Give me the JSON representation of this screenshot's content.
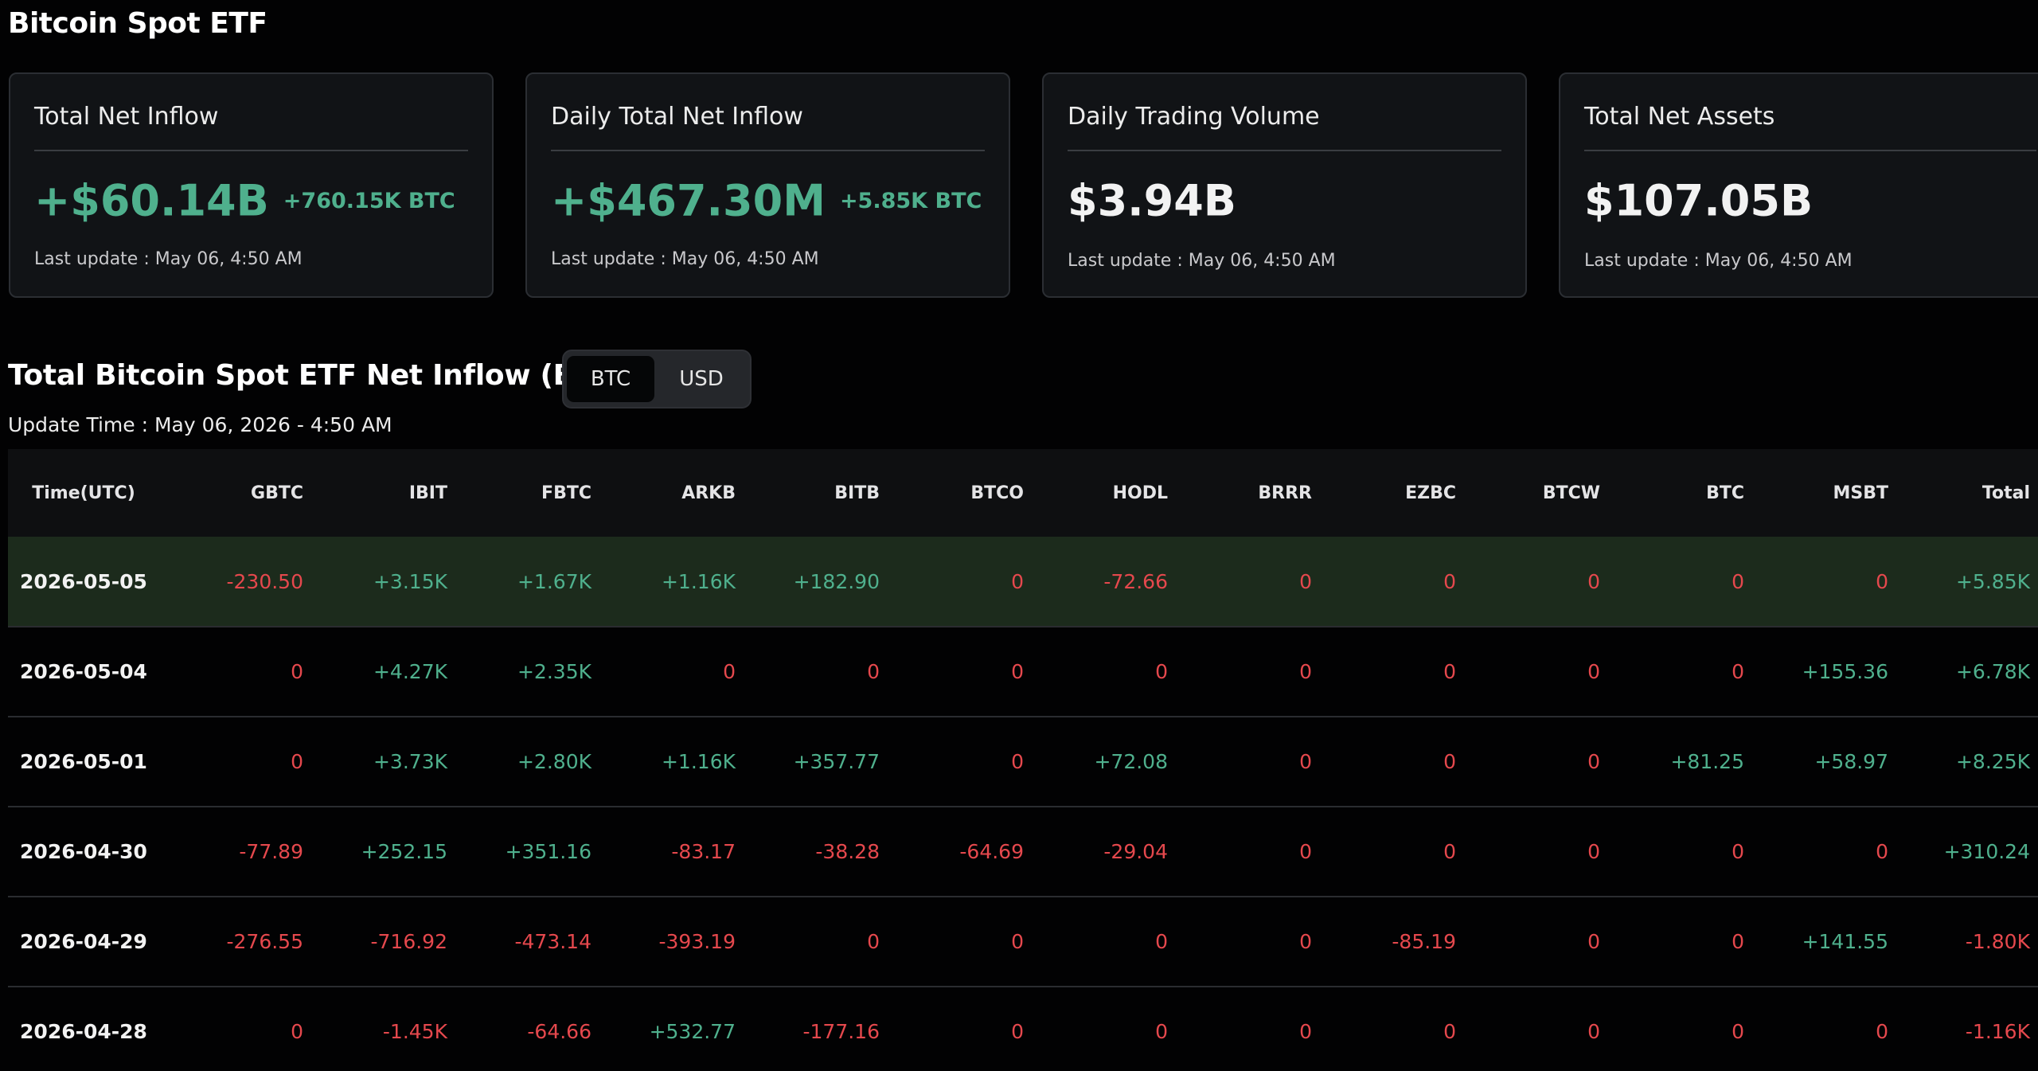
{
  "page": {
    "title": "Bitcoin Spot ETF"
  },
  "cards": [
    {
      "title": "Total Net Inflow",
      "value": "+$60.14B",
      "sub": "+760.15K BTC",
      "update": "Last update : May 06, 4:50 AM",
      "value_color": "#4fb08d"
    },
    {
      "title": "Daily Total Net Inflow",
      "value": "+$467.30M",
      "sub": "+5.85K BTC",
      "update": "Last update : May 06, 4:50 AM",
      "value_color": "#4fb08d"
    },
    {
      "title": "Daily Trading Volume",
      "value": "$3.94B",
      "sub": "",
      "update": "Last update : May 06, 4:50 AM",
      "value_color": "#f2f2f2"
    },
    {
      "title": "Total Net Assets",
      "value": "$107.05B",
      "sub": "",
      "update": "Last update : May 06, 4:50 AM",
      "value_color": "#f2f2f2"
    }
  ],
  "section": {
    "title": "Total Bitcoin Spot ETF Net Inflow (BTC)",
    "toggle": {
      "options": [
        "BTC",
        "USD"
      ],
      "selected": "BTC"
    },
    "update_time": "Update Time : May 06, 2026 - 4:50 AM"
  },
  "colors": {
    "positive": "#4fb08d",
    "negative": "#e5484d",
    "highlight_row": "#1c2b1c",
    "background": "#020203"
  },
  "table": {
    "columns": [
      "Time(UTC)",
      "GBTC",
      "IBIT",
      "FBTC",
      "ARKB",
      "BITB",
      "BTCO",
      "HODL",
      "BRRR",
      "EZBC",
      "BTCW",
      "BTC",
      "MSBT",
      "Total"
    ],
    "rows": [
      {
        "highlight": true,
        "cells": [
          "2026-05-05",
          "-230.50",
          "+3.15K",
          "+1.67K",
          "+1.16K",
          "+182.90",
          "0",
          "-72.66",
          "0",
          "0",
          "0",
          "0",
          "0",
          "+5.85K"
        ]
      },
      {
        "highlight": false,
        "cells": [
          "2026-05-04",
          "0",
          "+4.27K",
          "+2.35K",
          "0",
          "0",
          "0",
          "0",
          "0",
          "0",
          "0",
          "0",
          "+155.36",
          "+6.78K"
        ]
      },
      {
        "highlight": false,
        "cells": [
          "2026-05-01",
          "0",
          "+3.73K",
          "+2.80K",
          "+1.16K",
          "+357.77",
          "0",
          "+72.08",
          "0",
          "0",
          "0",
          "+81.25",
          "+58.97",
          "+8.25K"
        ]
      },
      {
        "highlight": false,
        "cells": [
          "2026-04-30",
          "-77.89",
          "+252.15",
          "+351.16",
          "-83.17",
          "-38.28",
          "-64.69",
          "-29.04",
          "0",
          "0",
          "0",
          "0",
          "0",
          "+310.24"
        ]
      },
      {
        "highlight": false,
        "cells": [
          "2026-04-29",
          "-276.55",
          "-716.92",
          "-473.14",
          "-393.19",
          "0",
          "0",
          "0",
          "0",
          "-85.19",
          "0",
          "0",
          "+141.55",
          "-1.80K"
        ]
      },
      {
        "highlight": false,
        "cells": [
          "2026-04-28",
          "0",
          "-1.45K",
          "-64.66",
          "+532.77",
          "-177.16",
          "0",
          "0",
          "0",
          "0",
          "0",
          "0",
          "0",
          "-1.16K"
        ]
      }
    ]
  }
}
